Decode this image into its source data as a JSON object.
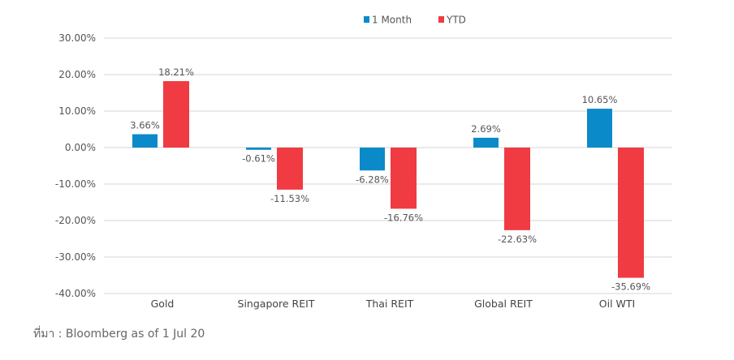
{
  "chart_data": {
    "type": "bar",
    "categories": [
      "Gold",
      "Singapore REIT",
      "Thai REIT",
      "Global REIT",
      "Oil WTI"
    ],
    "series": [
      {
        "name": "1 Month",
        "color": "#0b8ac9",
        "values": [
          3.66,
          -0.61,
          -6.28,
          2.69,
          10.65
        ],
        "labels": [
          "3.66%",
          "-0.61%",
          "-6.28%",
          "2.69%",
          "10.65%"
        ]
      },
      {
        "name": "YTD",
        "color": "#ef3b41",
        "values": [
          18.21,
          -11.53,
          -16.76,
          -22.63,
          -35.69
        ],
        "labels": [
          "18.21%",
          "-11.53%",
          "-16.76%",
          "-22.63%",
          "-35.69%"
        ]
      }
    ],
    "ylim": [
      -40,
      30
    ],
    "yticks": [
      30,
      20,
      10,
      0,
      -10,
      -20,
      -30,
      -40
    ],
    "ytick_labels": [
      "30.00%",
      "20.00%",
      "10.00%",
      "0.00%",
      "-10.00%",
      "-20.00%",
      "-30.00%",
      "-40.00%"
    ],
    "grid": true,
    "legend": "top-center"
  },
  "source": "ที่มา : Bloomberg as of 1 Jul 20"
}
